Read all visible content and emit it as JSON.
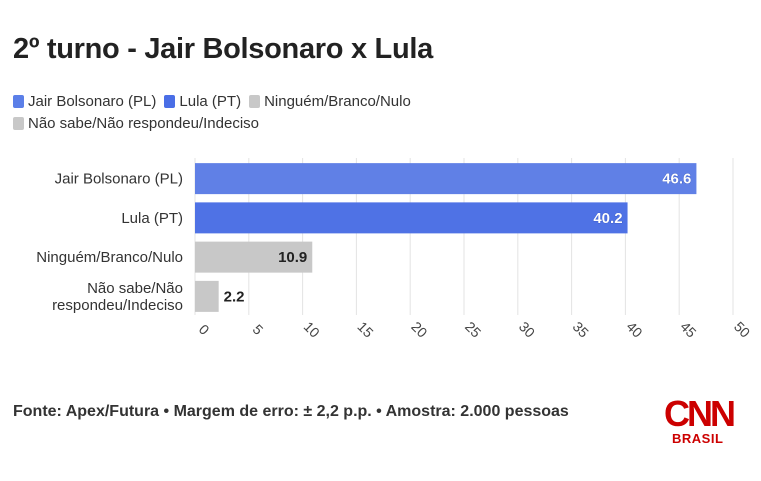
{
  "title": "2º turno - Jair Bolsonaro x Lula",
  "legend": [
    {
      "label": "Jair Bolsonaro (PL)",
      "color": "#5b7fe8"
    },
    {
      "label": "Lula (PT)",
      "color": "#4a6ee6"
    },
    {
      "label": "Ninguém/Branco/Nulo",
      "color": "#c8c8c8"
    },
    {
      "label": "Não sabe/Não respondeu/Indeciso",
      "color": "#c8c8c8"
    }
  ],
  "chart_data": {
    "type": "bar",
    "orientation": "horizontal",
    "categories": [
      "Jair Bolsonaro (PL)",
      "Lula (PT)",
      "Ninguém/Branco/Nulo",
      "Não sabe/Não respondeu/Indeciso"
    ],
    "category_label_lines": [
      [
        "Jair Bolsonaro (PL)"
      ],
      [
        "Lula (PT)"
      ],
      [
        "Ninguém/Branco/Nulo"
      ],
      [
        "Não sabe/Não",
        "respondeu/Indeciso"
      ]
    ],
    "values": [
      46.6,
      40.2,
      10.9,
      2.2
    ],
    "value_labels": [
      "46.6",
      "40.2",
      "10.9",
      "2.2"
    ],
    "colors": [
      "#6080e6",
      "#4f72e5",
      "#c8c8c8",
      "#c8c8c8"
    ],
    "xlim": [
      0,
      50
    ],
    "xticks": [
      0,
      5,
      10,
      15,
      20,
      25,
      30,
      35,
      40,
      45,
      50
    ],
    "grid": true
  },
  "footer": {
    "source": "Fonte: Apex/Futura • Margem de erro: ± 2,2 p.p. • Amostra: 2.000 pessoas"
  },
  "logo": {
    "name": "CNN",
    "sub": "BRASIL",
    "color": "#cc0000"
  }
}
